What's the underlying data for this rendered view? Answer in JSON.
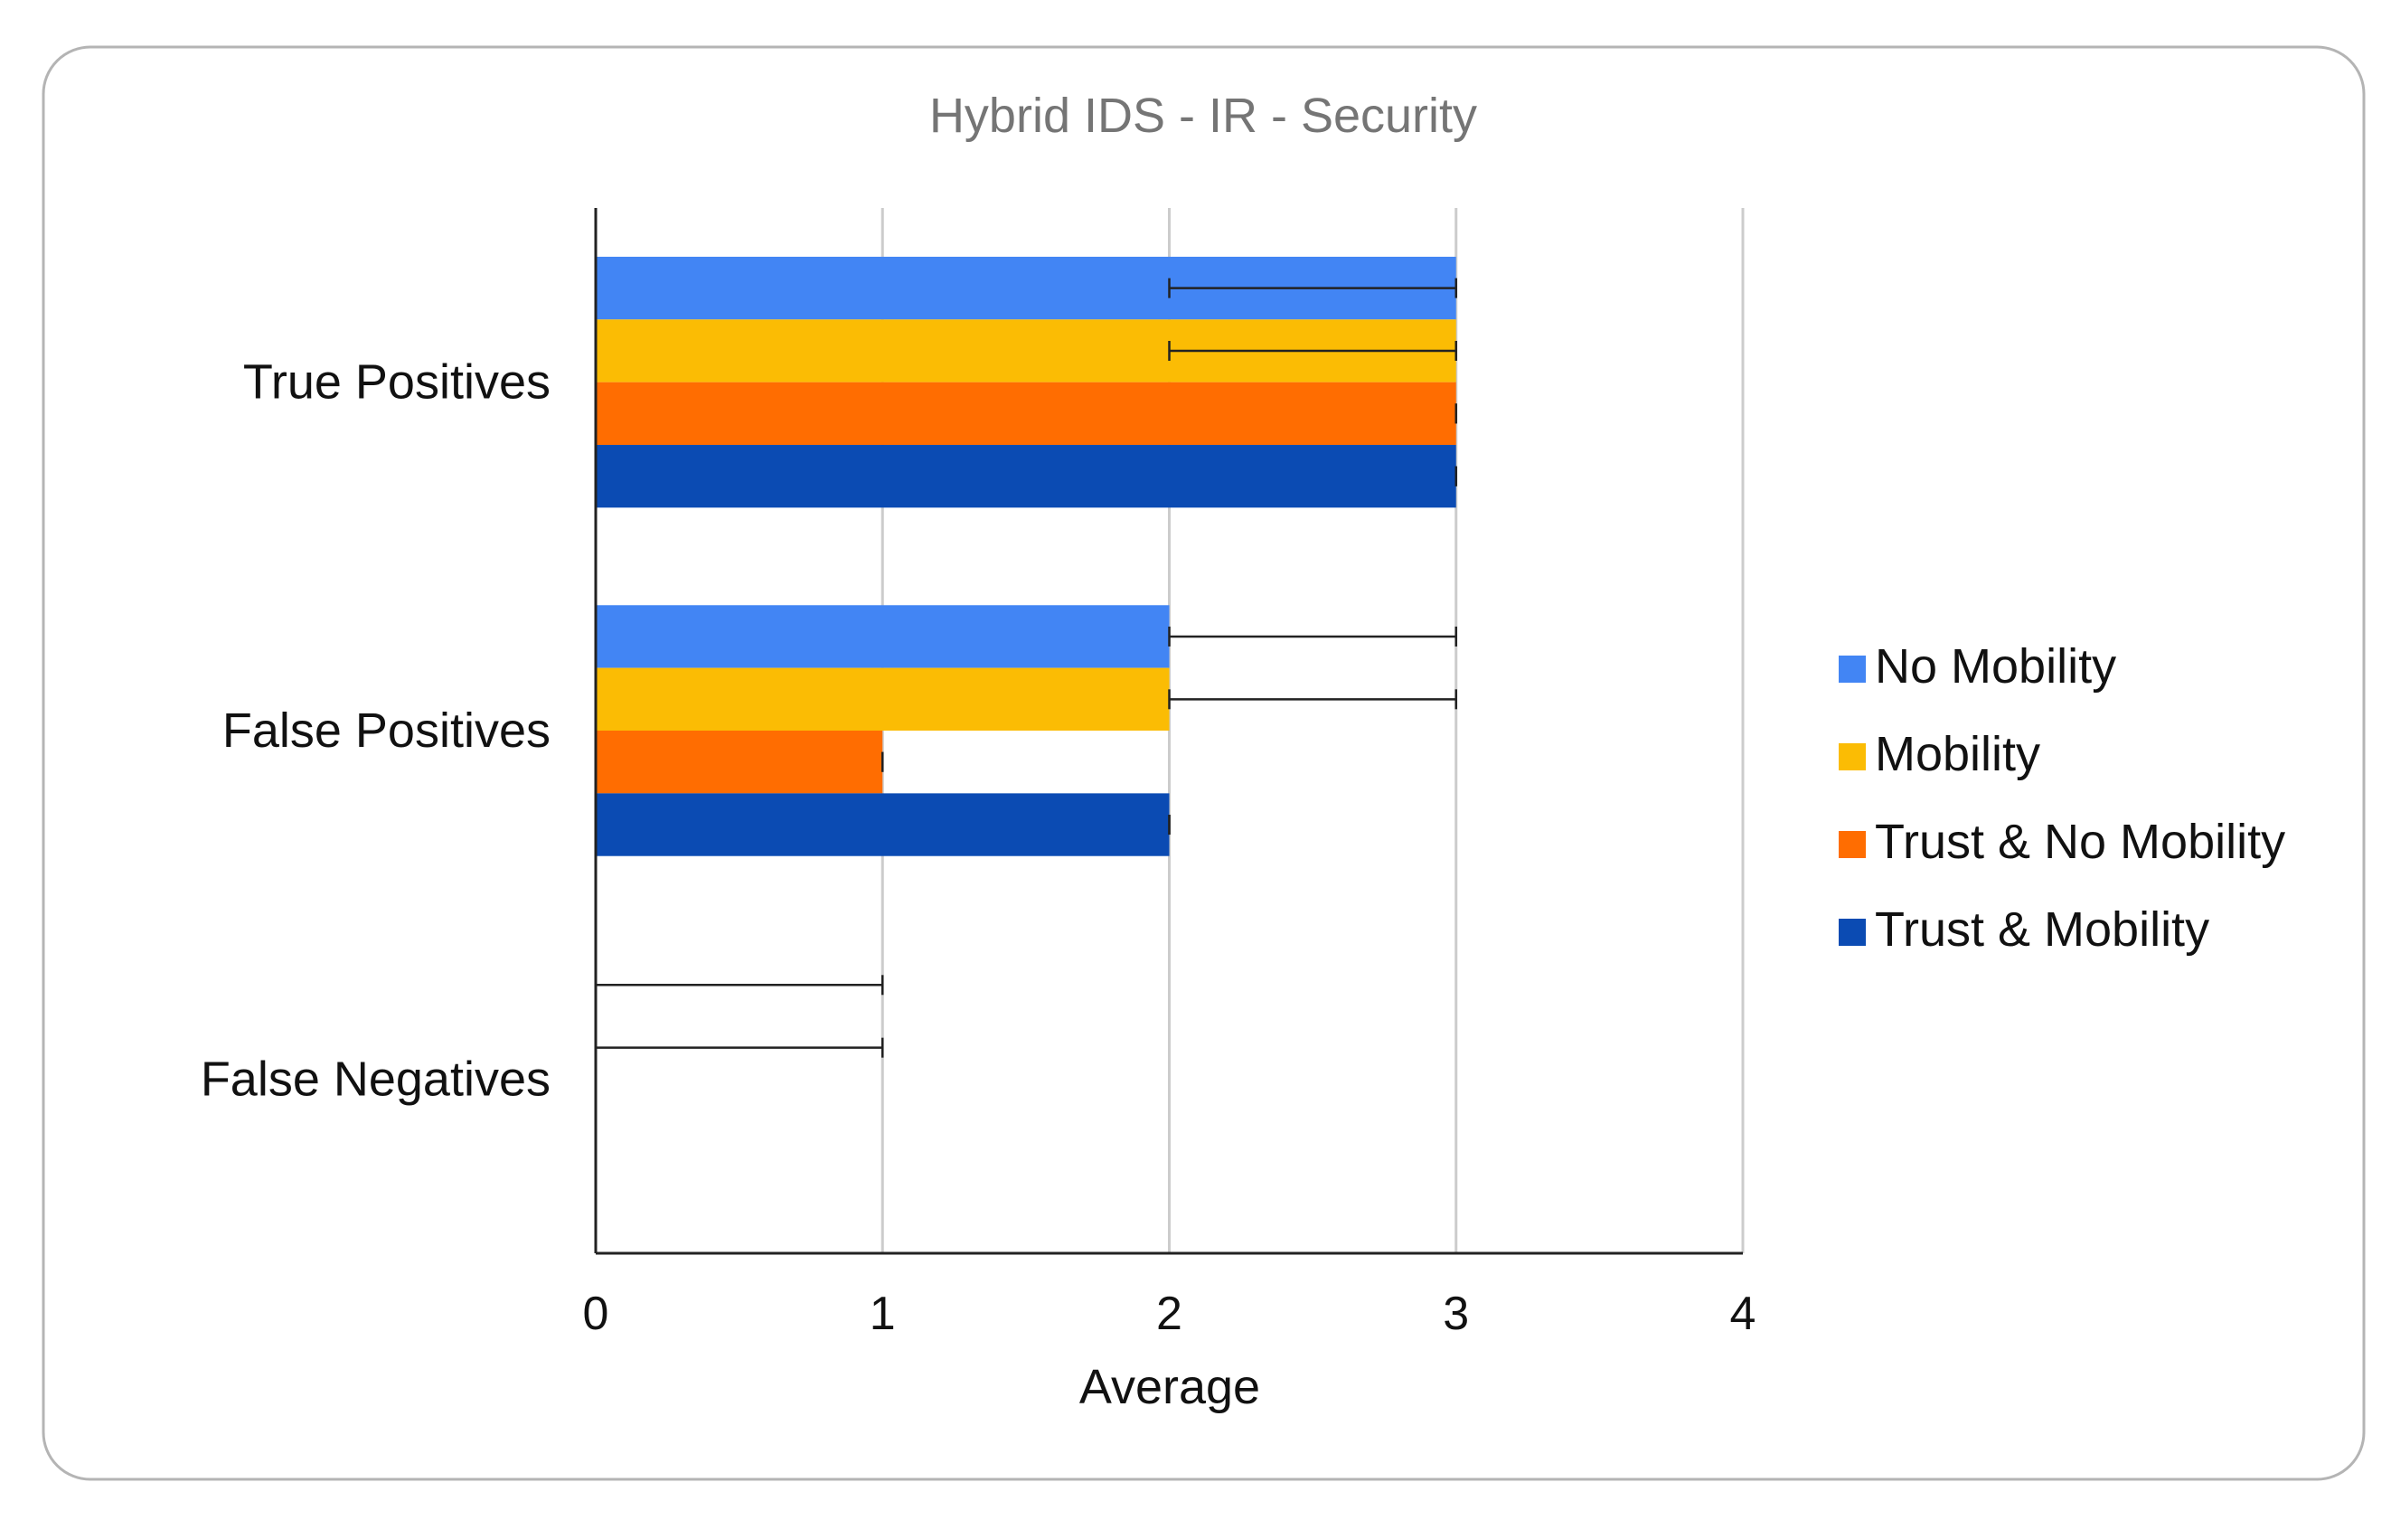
{
  "chart_data": {
    "type": "bar",
    "orientation": "horizontal",
    "title": "Hybrid IDS - IR - Security",
    "xlabel": "Average",
    "ylabel": "",
    "xlim": [
      0,
      4
    ],
    "x_ticks": [
      "0",
      "1",
      "2",
      "3",
      "4"
    ],
    "grid": true,
    "legend_position": "right",
    "categories": [
      "True Positives",
      "False Positives",
      "False Negatives"
    ],
    "series": [
      {
        "name": "No Mobility",
        "color": "#4285f4",
        "values": [
          3,
          2,
          0
        ],
        "error_minus": [
          1,
          0,
          0
        ],
        "error_plus": [
          0,
          1,
          1
        ]
      },
      {
        "name": "Mobility",
        "color": "#fbbc04",
        "values": [
          3,
          2,
          0
        ],
        "error_minus": [
          1,
          0,
          0
        ],
        "error_plus": [
          0,
          1,
          1
        ]
      },
      {
        "name": "Trust & No Mobility",
        "color": "#ff6d01",
        "values": [
          3,
          1,
          0
        ],
        "error_minus": [
          0,
          0,
          0
        ],
        "error_plus": [
          0,
          0,
          0
        ]
      },
      {
        "name": "Trust & Mobility",
        "color": "#0b4bb3",
        "values": [
          3,
          2,
          0
        ],
        "error_minus": [
          0,
          0,
          0
        ],
        "error_plus": [
          0,
          0,
          0
        ]
      }
    ]
  }
}
